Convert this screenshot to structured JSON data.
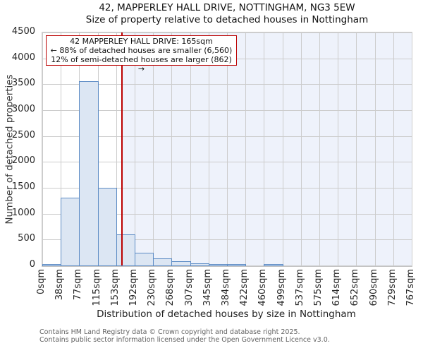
{
  "title": "42, MAPPERLEY HALL DRIVE, NOTTINGHAM, NG3 5EW",
  "subtitle": "Size of property relative to detached houses in Nottingham",
  "annotation": {
    "line1": "42 MAPPERLEY HALL DRIVE: 165sqm",
    "line2": "← 88% of detached houses are smaller (6,560)",
    "line3": "12% of semi-detached houses are larger (862) →"
  },
  "footer": {
    "line1": "Contains HM Land Registry data © Crown copyright and database right 2025.",
    "line2": "Contains public sector information licensed under the Open Government Licence v3.0."
  },
  "chart_data": {
    "type": "bar",
    "title": "42, MAPPERLEY HALL DRIVE, NOTTINGHAM, NG3 5EW",
    "subtitle": "Size of property relative to detached houses in Nottingham",
    "xlabel": "Distribution of detached houses by size in Nottingham",
    "ylabel": "Number of detached properties",
    "categories": [
      "0sqm",
      "38sqm",
      "77sqm",
      "115sqm",
      "153sqm",
      "192sqm",
      "230sqm",
      "268sqm",
      "307sqm",
      "345sqm",
      "384sqm",
      "422sqm",
      "460sqm",
      "499sqm",
      "537sqm",
      "575sqm",
      "614sqm",
      "652sqm",
      "690sqm",
      "729sqm",
      "767sqm"
    ],
    "values": [
      10,
      1300,
      3550,
      1490,
      580,
      230,
      120,
      65,
      28,
      12,
      8,
      0,
      10,
      0,
      0,
      0,
      0,
      0,
      0,
      0
    ],
    "ylim": [
      0,
      4500
    ],
    "yticks": [
      0,
      500,
      1000,
      1500,
      2000,
      2500,
      3000,
      3500,
      4000,
      4500
    ],
    "grid": true,
    "legend": false,
    "marker": {
      "value_sqm": 165,
      "axis_max_sqm": 767
    },
    "colors": {
      "bar_fill": "#dce6f3",
      "bar_edge": "#5c8bc4",
      "shade_right_of_marker": "#eef2fb",
      "gridline": "#cccccc",
      "marker_line": "#bb0000",
      "annotation_border": "#bb0000"
    }
  }
}
